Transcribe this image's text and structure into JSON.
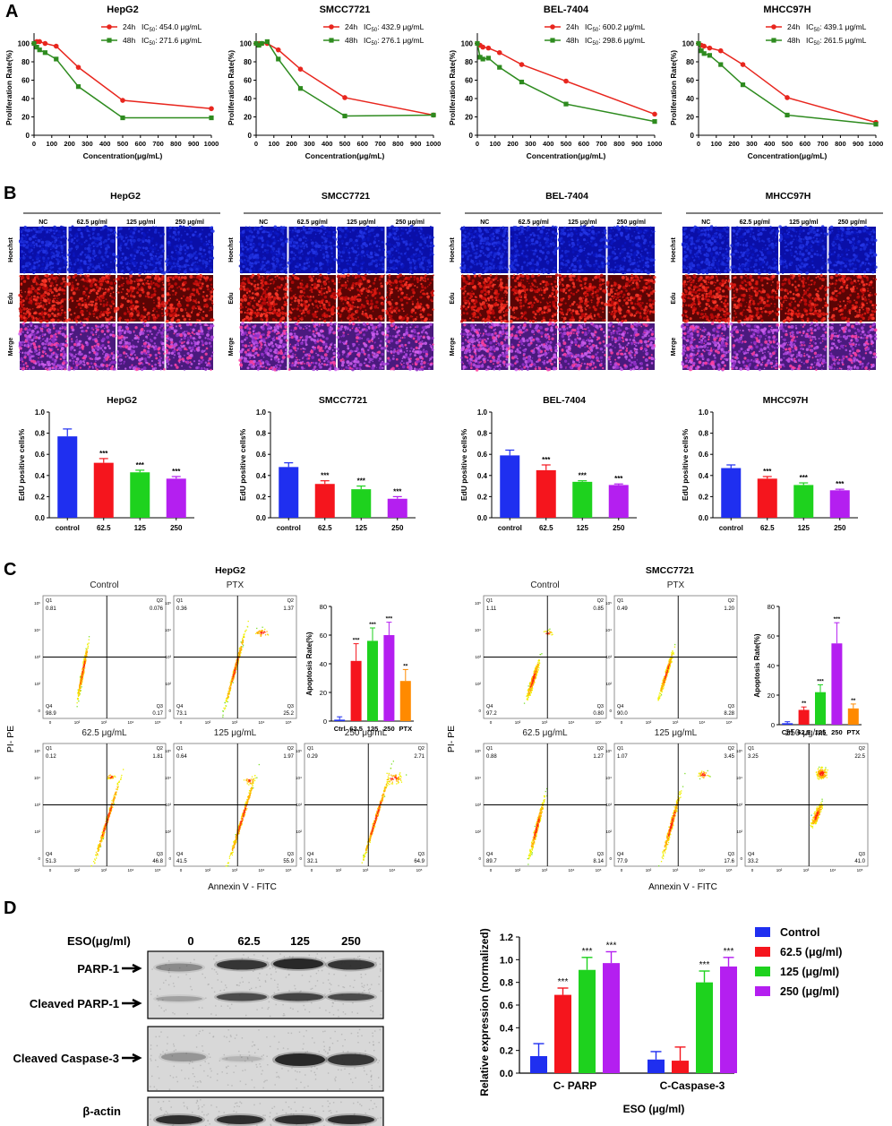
{
  "panels": {
    "A": "A",
    "B": "B",
    "C": "C",
    "D": "D"
  },
  "chart_data": [
    {
      "panel": "A",
      "type": "line",
      "title": "HepG2",
      "xlabel": "Concentration(μg/mL)",
      "ylabel": "Proliferation Rate(%)",
      "xlim": [
        0,
        1000
      ],
      "ylim": [
        0,
        120
      ],
      "xticks": [
        0,
        100,
        200,
        300,
        400,
        500,
        600,
        700,
        800,
        900,
        1000
      ],
      "yticks": [
        0,
        20,
        40,
        60,
        80,
        100
      ],
      "x": [
        0,
        15.625,
        31.25,
        62.5,
        125,
        250,
        500,
        1000
      ],
      "series": [
        {
          "name": "24h",
          "legend": "IC50: 454.0 μg/mL",
          "legend_prefix": "IC",
          "legend_sub": "50",
          "legend_suffix": ": 454.0 μg/mL",
          "color": "#e8261e",
          "values": [
            100,
            102,
            102,
            100,
            97,
            74,
            38,
            29
          ]
        },
        {
          "name": "48h",
          "legend": "IC50: 271.6 μg/mL",
          "legend_prefix": "IC",
          "legend_sub": "50",
          "legend_suffix": ": 271.6 μg/mL",
          "color": "#2e8b1f",
          "values": [
            100,
            96,
            93,
            90,
            83,
            53,
            19,
            19
          ]
        }
      ]
    },
    {
      "panel": "A",
      "type": "line",
      "title": "SMCC7721",
      "xlabel": "Concentration(μg/mL)",
      "ylabel": "Proliferation Rate(%)",
      "xlim": [
        0,
        1000
      ],
      "ylim": [
        0,
        120
      ],
      "xticks": [
        0,
        100,
        200,
        300,
        400,
        500,
        600,
        700,
        800,
        900,
        1000
      ],
      "yticks": [
        0,
        20,
        40,
        60,
        80,
        100
      ],
      "x": [
        0,
        15.625,
        31.25,
        62.5,
        125,
        250,
        500,
        1000
      ],
      "series": [
        {
          "name": "24h",
          "legend": "IC50: 432.9 μg/mL",
          "legend_prefix": "IC",
          "legend_sub": "50",
          "legend_suffix": ": 432.9 μg/mL",
          "color": "#e8261e",
          "values": [
            100,
            100,
            100,
            100,
            93,
            72,
            41,
            22
          ]
        },
        {
          "name": "48h",
          "legend": "IC50: 276.1 μg/mL",
          "legend_prefix": "IC",
          "legend_sub": "50",
          "legend_suffix": ": 276.1 μg/mL",
          "color": "#2e8b1f",
          "values": [
            100,
            98,
            100,
            102,
            83,
            51,
            21,
            22
          ]
        }
      ]
    },
    {
      "panel": "A",
      "type": "line",
      "title": "BEL-7404",
      "xlabel": "Concentration(μg/mL)",
      "ylabel": "Proliferation Rate(%)",
      "xlim": [
        0,
        1000
      ],
      "ylim": [
        0,
        120
      ],
      "xticks": [
        0,
        100,
        200,
        300,
        400,
        500,
        600,
        700,
        800,
        900,
        1000
      ],
      "yticks": [
        0,
        20,
        40,
        60,
        80,
        100
      ],
      "x": [
        0,
        15.625,
        31.25,
        62.5,
        125,
        250,
        500,
        1000
      ],
      "series": [
        {
          "name": "24h",
          "legend": "IC50: 600.2 μg/mL",
          "legend_prefix": "IC",
          "legend_sub": "50",
          "legend_suffix": ": 600.2 μg/mL",
          "color": "#e8261e",
          "values": [
            100,
            98,
            96,
            95,
            90,
            77,
            59,
            23
          ]
        },
        {
          "name": "48h",
          "legend": "IC50: 298.6 μg/mL",
          "legend_prefix": "IC",
          "legend_sub": "50",
          "legend_suffix": ": 298.6 μg/mL",
          "color": "#2e8b1f",
          "values": [
            100,
            85,
            83,
            84,
            74,
            58,
            34,
            15
          ]
        }
      ]
    },
    {
      "panel": "A",
      "type": "line",
      "title": "MHCC97H",
      "xlabel": "Concentration(μg/mL)",
      "ylabel": "Proliferation Rate(%)",
      "xlim": [
        0,
        1000
      ],
      "ylim": [
        0,
        120
      ],
      "xticks": [
        0,
        100,
        200,
        300,
        400,
        500,
        600,
        700,
        800,
        900,
        1000
      ],
      "yticks": [
        0,
        20,
        40,
        60,
        80,
        100
      ],
      "x": [
        0,
        15.625,
        31.25,
        62.5,
        125,
        250,
        500,
        1000
      ],
      "series": [
        {
          "name": "24h",
          "legend": "IC50: 439.1 μg/mL",
          "legend_prefix": "IC",
          "legend_sub": "50",
          "legend_suffix": ": 439.1 μg/mL",
          "color": "#e8261e",
          "values": [
            100,
            98,
            97,
            95,
            92,
            77,
            41,
            14
          ]
        },
        {
          "name": "48h",
          "legend": "IC50: 261.5 μg/mL",
          "legend_prefix": "IC",
          "legend_sub": "50",
          "legend_suffix": ": 261.5 μg/mL",
          "color": "#2e8b1f",
          "values": [
            100,
            92,
            89,
            87,
            77,
            55,
            22,
            12
          ]
        }
      ]
    },
    {
      "panel": "B",
      "type": "bar",
      "title": "HepG2",
      "ylabel": "EdU positive cells%",
      "ylim": [
        0,
        1.0
      ],
      "yticks": [
        0.0,
        0.2,
        0.4,
        0.6,
        0.8,
        1.0
      ],
      "categories": [
        "control",
        "62.5",
        "125",
        "250"
      ],
      "values": [
        0.77,
        0.52,
        0.43,
        0.37
      ],
      "errors": [
        0.07,
        0.04,
        0.02,
        0.02
      ],
      "colors": [
        "#1f2ff0",
        "#f5151d",
        "#1ed21e",
        "#b41ff0"
      ],
      "significance": [
        "",
        "***",
        "***",
        "***"
      ]
    },
    {
      "panel": "B",
      "type": "bar",
      "title": "SMCC7721",
      "ylabel": "EdU positive cells%",
      "ylim": [
        0,
        1.0
      ],
      "yticks": [
        0.0,
        0.2,
        0.4,
        0.6,
        0.8,
        1.0
      ],
      "categories": [
        "control",
        "62.5",
        "125",
        "250"
      ],
      "values": [
        0.48,
        0.32,
        0.27,
        0.18
      ],
      "errors": [
        0.04,
        0.03,
        0.03,
        0.02
      ],
      "colors": [
        "#1f2ff0",
        "#f5151d",
        "#1ed21e",
        "#b41ff0"
      ],
      "significance": [
        "",
        "***",
        "***",
        "***"
      ]
    },
    {
      "panel": "B",
      "type": "bar",
      "title": "BEL-7404",
      "ylabel": "EdU positive cells%",
      "ylim": [
        0,
        1.0
      ],
      "yticks": [
        0.0,
        0.2,
        0.4,
        0.6,
        0.8,
        1.0
      ],
      "categories": [
        "control",
        "62.5",
        "125",
        "250"
      ],
      "values": [
        0.59,
        0.45,
        0.34,
        0.31
      ],
      "errors": [
        0.05,
        0.05,
        0.01,
        0.01
      ],
      "colors": [
        "#1f2ff0",
        "#f5151d",
        "#1ed21e",
        "#b41ff0"
      ],
      "significance": [
        "",
        "***",
        "***",
        "***"
      ]
    },
    {
      "panel": "B",
      "type": "bar",
      "title": "MHCC97H",
      "ylabel": "EdU positive cells%",
      "ylim": [
        0,
        1.0
      ],
      "yticks": [
        0.0,
        0.2,
        0.4,
        0.6,
        0.8,
        1.0
      ],
      "categories": [
        "control",
        "62.5",
        "125",
        "250"
      ],
      "values": [
        0.47,
        0.37,
        0.31,
        0.26
      ],
      "errors": [
        0.03,
        0.02,
        0.02,
        0.01
      ],
      "colors": [
        "#1f2ff0",
        "#f5151d",
        "#1ed21e",
        "#b41ff0"
      ],
      "significance": [
        "",
        "***",
        "***",
        "***"
      ]
    },
    {
      "panel": "C",
      "type": "bar",
      "title": "HepG2 apoptosis",
      "ylabel": "Apoptosis Rate(%)",
      "ylim": [
        0,
        80
      ],
      "yticks": [
        0,
        20,
        40,
        60,
        80
      ],
      "categories": [
        "Ctrl",
        "62.5",
        "125",
        "250",
        "PTX"
      ],
      "values": [
        1,
        42,
        56,
        60,
        28
      ],
      "errors": [
        2,
        12,
        9,
        9,
        8
      ],
      "colors": [
        "#1f2ff0",
        "#f5151d",
        "#1ed21e",
        "#b41ff0",
        "#ff8a00"
      ],
      "significance": [
        "",
        "***",
        "***",
        "***",
        "**"
      ]
    },
    {
      "panel": "C",
      "type": "bar",
      "title": "SMCC7721 apoptosis",
      "ylabel": "Apoptosis Rate(%)",
      "ylim": [
        0,
        80
      ],
      "yticks": [
        0,
        20,
        40,
        60,
        80
      ],
      "categories": [
        "Ctrl",
        "62.5",
        "125",
        "250",
        "PTX"
      ],
      "values": [
        1,
        10,
        22,
        55,
        11
      ],
      "errors": [
        1,
        2,
        5,
        14,
        3
      ],
      "colors": [
        "#1f2ff0",
        "#f5151d",
        "#1ed21e",
        "#b41ff0",
        "#ff8a00"
      ],
      "significance": [
        "",
        "**",
        "***",
        "***",
        "**"
      ]
    },
    {
      "panel": "D",
      "type": "bar",
      "ylabel": "Relative expression (normalized)",
      "xlabel": "ESO (μg/ml)",
      "ylim": [
        0,
        1.2
      ],
      "yticks": [
        0.0,
        0.2,
        0.4,
        0.6,
        0.8,
        1.0,
        1.2
      ],
      "categories": [
        "C- PARP",
        "C-Caspase-3"
      ],
      "series": [
        {
          "name": "Control",
          "color": "#1f2ff0",
          "values": [
            0.15,
            0.12
          ],
          "errors": [
            0.11,
            0.07
          ],
          "significance": [
            "",
            ""
          ]
        },
        {
          "name": "62.5  (μg/ml)",
          "color": "#f5151d",
          "values": [
            0.69,
            0.11
          ],
          "errors": [
            0.06,
            0.12
          ],
          "significance": [
            "***",
            ""
          ]
        },
        {
          "name": "125  (μg/ml)",
          "color": "#1ed21e",
          "values": [
            0.91,
            0.8
          ],
          "errors": [
            0.11,
            0.1
          ],
          "significance": [
            "***",
            "***"
          ]
        },
        {
          "name": "250  (μg/ml)",
          "color": "#b41ff0",
          "values": [
            0.97,
            0.94
          ],
          "errors": [
            0.1,
            0.08
          ],
          "significance": [
            "***",
            "***"
          ]
        }
      ]
    }
  ],
  "edu_images": {
    "cell_lines": [
      "HepG2",
      "SMCC7721",
      "BEL-7404",
      "MHCC97H"
    ],
    "columns": [
      "NC",
      "62.5 μg/ml",
      "125 μg/ml",
      "250 μg/ml"
    ],
    "rows": [
      "Hoechst",
      "Edu",
      "Merge"
    ]
  },
  "flow": {
    "axis_x": "Annexin V - FITC",
    "axis_y": "PI- PE",
    "blocks": [
      {
        "title": "HepG2",
        "plots": [
          {
            "label": "Control",
            "q1": "0.81",
            "q2": "0.076",
            "q3": "0.17",
            "q4": "98.9"
          },
          {
            "label": "PTX",
            "q1": "0.36",
            "q2": "1.37",
            "q3": "25.2",
            "q4": "73.1"
          },
          {
            "label": "62.5 μg/mL",
            "q1": "0.12",
            "q2": "1.81",
            "q3": "46.8",
            "q4": "51.3"
          },
          {
            "label": "125 μg/mL",
            "q1": "0.64",
            "q2": "1.97",
            "q3": "55.9",
            "q4": "41.5"
          },
          {
            "label": "250 μg/mL",
            "q1": "0.29",
            "q2": "2.71",
            "q3": "64.9",
            "q4": "32.1"
          }
        ]
      },
      {
        "title": "SMCC7721",
        "plots": [
          {
            "label": "Control",
            "q1": "1.11",
            "q2": "0.85",
            "q3": "0.80",
            "q4": "97.2"
          },
          {
            "label": "PTX",
            "q1": "0.49",
            "q2": "1.20",
            "q3": "8.28",
            "q4": "90.0"
          },
          {
            "label": "62.5 μg/mL",
            "q1": "0.88",
            "q2": "1.27",
            "q3": "8.14",
            "q4": "89.7"
          },
          {
            "label": "125 μg/mL",
            "q1": "1.07",
            "q2": "3.45",
            "q3": "17.6",
            "q4": "77.9"
          },
          {
            "label": "250 μg/mL",
            "q1": "3.25",
            "q2": "22.5",
            "q3": "41.0",
            "q4": "33.2"
          }
        ]
      }
    ]
  },
  "western": {
    "header_label": "ESO(μg/ml)",
    "doses": [
      "0",
      "62.5",
      "125",
      "250"
    ],
    "labels": {
      "parp": "PARP-1",
      "cleaved_parp": "Cleaved PARP-1",
      "caspase": "Cleaved Caspase-3",
      "actin": "β-actin"
    }
  }
}
